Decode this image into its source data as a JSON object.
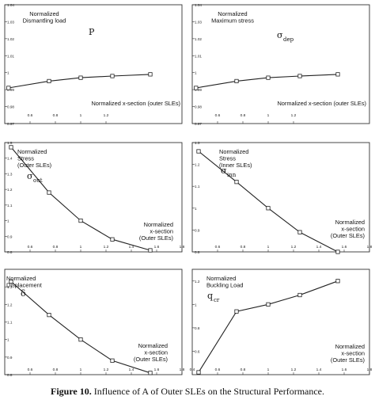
{
  "caption": {
    "label": "Figure 10.",
    "text": "Influence of A of Outer SLEs on the Structural Performance."
  },
  "chart_data": [
    {
      "type": "line",
      "title_lines": [
        "Normalized",
        "Dismantling load"
      ],
      "symbol": "P",
      "symbol_sub": "",
      "xlabel_lines": [
        "Normalized x-section (outer SLEs)"
      ],
      "xlim": [
        0.4,
        1.8
      ],
      "ylim": [
        0.97,
        1.04
      ],
      "x_ticks": [
        "0.6",
        "0.8",
        "1",
        "1.2"
      ],
      "x_tick_values": [
        0.6,
        0.8,
        1.0,
        1.2
      ],
      "y_ticks": [
        "1.04",
        "1.03",
        "1.02",
        "1.01",
        "1",
        "0.99",
        "0.98",
        "0.97"
      ],
      "y_tick_values": [
        1.04,
        1.03,
        1.02,
        1.01,
        1.0,
        0.99,
        0.98,
        0.97
      ],
      "x": [
        0.43,
        0.75,
        1.0,
        1.25,
        1.55
      ],
      "y": [
        0.991,
        0.995,
        0.997,
        0.998,
        0.999
      ]
    },
    {
      "type": "line",
      "title_lines": [
        "Normalized",
        "Maximum stress"
      ],
      "symbol": "σ",
      "symbol_sub": "dep",
      "xlabel_lines": [
        "Normalized x-section (outer SLEs)"
      ],
      "xlim": [
        0.4,
        1.8
      ],
      "ylim": [
        0.97,
        1.04
      ],
      "x_ticks": [
        "0.6",
        "0.8",
        "1",
        "1.2"
      ],
      "x_tick_values": [
        0.6,
        0.8,
        1.0,
        1.2
      ],
      "y_ticks": [
        "1.04",
        "1.03",
        "1.02",
        "1.01",
        "1",
        "0.99",
        "0.98",
        "0.97"
      ],
      "y_tick_values": [
        1.04,
        1.03,
        1.02,
        1.01,
        1.0,
        0.99,
        0.98,
        0.97
      ],
      "x": [
        0.43,
        0.75,
        1.0,
        1.25,
        1.55
      ],
      "y": [
        0.991,
        0.995,
        0.997,
        0.998,
        0.999
      ]
    },
    {
      "type": "line",
      "title_lines": [
        "Normalized",
        "Stress",
        "(Outer SLEs)"
      ],
      "symbol": "σ",
      "symbol_sub": "out",
      "xlabel_lines": [
        "Normalized",
        "x-section",
        "(Outer SLEs)"
      ],
      "xlim": [
        0.4,
        1.8
      ],
      "ylim": [
        0.8,
        1.5
      ],
      "x_ticks": [
        "0.6",
        "0.8",
        "1",
        "1.2",
        "1.4",
        "1.6",
        "1.8"
      ],
      "x_tick_values": [
        0.6,
        0.8,
        1.0,
        1.2,
        1.4,
        1.6,
        1.8
      ],
      "y_ticks": [
        "1.5",
        "1.4",
        "1.3",
        "1.2",
        "1.1",
        "1",
        "0.9",
        "0.8"
      ],
      "y_tick_values": [
        1.5,
        1.4,
        1.3,
        1.2,
        1.1,
        1.0,
        0.9,
        0.8
      ],
      "x": [
        0.45,
        0.75,
        1.0,
        1.25,
        1.55
      ],
      "y": [
        1.47,
        1.18,
        1.0,
        0.88,
        0.81
      ]
    },
    {
      "type": "line",
      "title_lines": [
        "Normalized",
        "Stress",
        "(Inner SLEs)"
      ],
      "symbol": "σ",
      "symbol_sub": "inn",
      "xlabel_lines": [
        "Normalized",
        "x-section",
        "(Outer SLEs)"
      ],
      "xlim": [
        0.4,
        1.8
      ],
      "ylim": [
        0.8,
        1.3
      ],
      "x_ticks": [
        "0.6",
        "0.8",
        "1",
        "1.2",
        "1.4",
        "1.6",
        "1.8"
      ],
      "x_tick_values": [
        0.6,
        0.8,
        1.0,
        1.2,
        1.4,
        1.6,
        1.8
      ],
      "y_ticks": [
        "1.3",
        "1.2",
        "1.1",
        "1",
        "0.9",
        "0.8"
      ],
      "y_tick_values": [
        1.3,
        1.2,
        1.1,
        1.0,
        0.9,
        0.8
      ],
      "x": [
        0.45,
        0.75,
        1.0,
        1.25,
        1.55
      ],
      "y": [
        1.26,
        1.12,
        1.0,
        0.89,
        0.8
      ]
    },
    {
      "type": "line",
      "title_lines": [
        "Normalized",
        "Displacement"
      ],
      "symbol": "δ",
      "symbol_sub": "",
      "xlabel_lines": [
        "Normalized",
        "x-section",
        "(Outer SLEs)"
      ],
      "xlim": [
        0.4,
        1.8
      ],
      "ylim": [
        0.8,
        1.4
      ],
      "x_ticks": [
        "0.6",
        "0.8",
        "1",
        "1.2",
        "1.4",
        "1.6",
        "1.8"
      ],
      "x_tick_values": [
        0.6,
        0.8,
        1.0,
        1.2,
        1.4,
        1.6,
        1.8
      ],
      "y_ticks": [
        "1.3",
        "1.2",
        "1.1",
        "1",
        "0.9",
        "0.8"
      ],
      "y_tick_values": [
        1.3,
        1.2,
        1.1,
        1.0,
        0.9,
        0.8
      ],
      "x": [
        0.45,
        0.75,
        1.0,
        1.25,
        1.55
      ],
      "y": [
        1.33,
        1.14,
        1.0,
        0.88,
        0.81
      ]
    },
    {
      "type": "line",
      "title_lines": [
        "Normalized",
        "Buckling Load"
      ],
      "symbol": "q",
      "symbol_sub": "cr",
      "xlabel_lines": [
        "Normalized",
        "x-section",
        "(Outer SLEs)"
      ],
      "xlim": [
        0.4,
        1.8
      ],
      "ylim": [
        0.4,
        1.3
      ],
      "x_ticks": [
        "0.4",
        "0.6",
        "0.8",
        "1",
        "1.2",
        "1.4",
        "1.6",
        "1.8"
      ],
      "x_tick_values": [
        0.4,
        0.6,
        0.8,
        1.0,
        1.2,
        1.4,
        1.6,
        1.8
      ],
      "y_ticks": [
        "1.2",
        "1",
        "0.8",
        "0.6"
      ],
      "y_tick_values": [
        1.2,
        1.0,
        0.8,
        0.6
      ],
      "x": [
        0.45,
        0.75,
        1.0,
        1.25,
        1.55
      ],
      "y": [
        0.42,
        0.94,
        1.0,
        1.08,
        1.2
      ]
    }
  ]
}
